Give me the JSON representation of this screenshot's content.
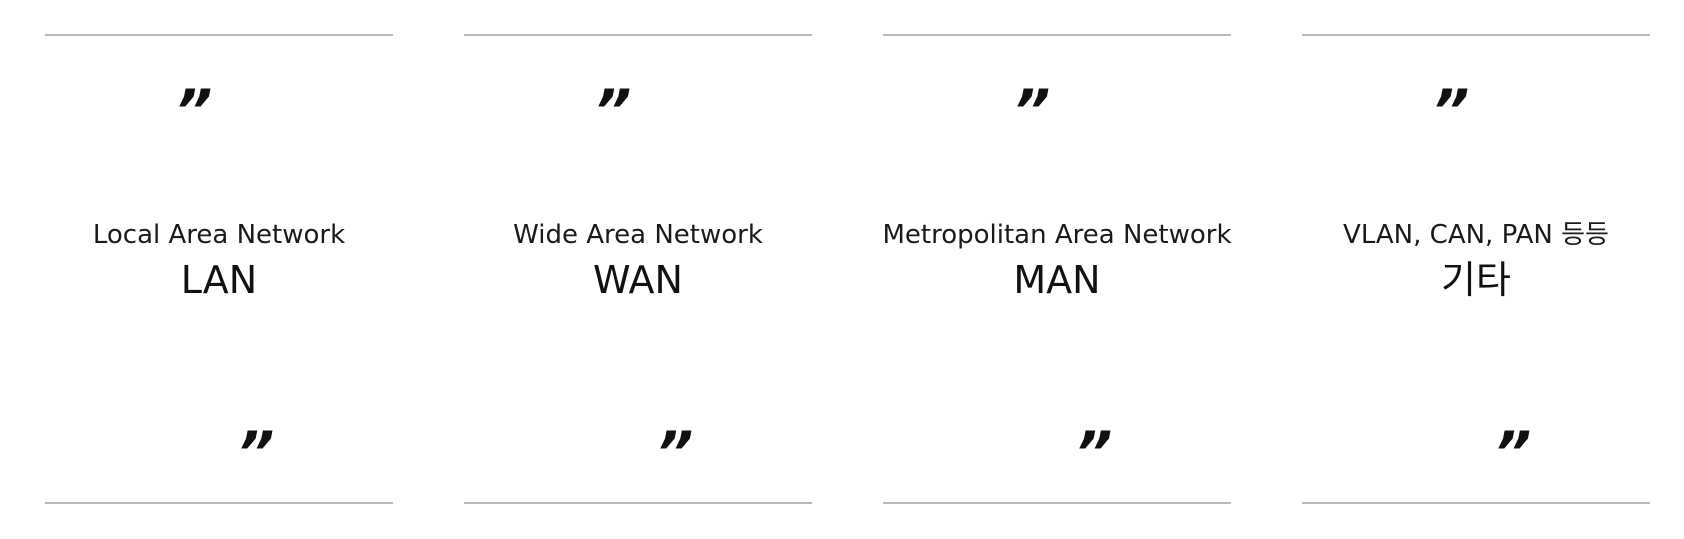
{
  "quote_open": "”",
  "quote_close": "”",
  "cards": [
    {
      "subtitle": "Local Area Network",
      "title": "LAN"
    },
    {
      "subtitle": "Wide Area Network",
      "title": "WAN"
    },
    {
      "subtitle": "Metropolitan Area Network",
      "title": "MAN"
    },
    {
      "subtitle": "VLAN, CAN, PAN 등등",
      "title": "기타"
    }
  ]
}
